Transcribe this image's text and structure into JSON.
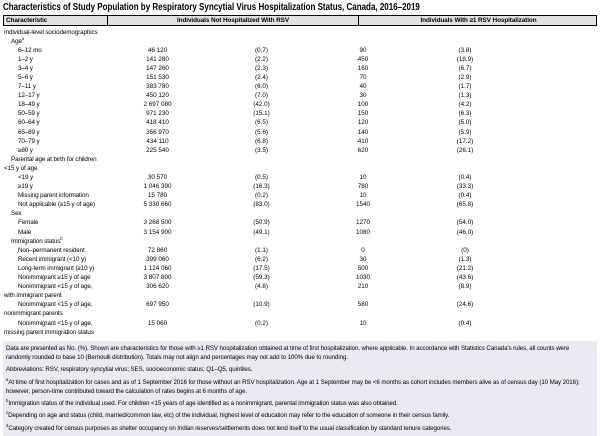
{
  "title": "Characteristics of Study Population by Respiratory Syncytial Virus Hospitalization Status, Canada, 2016–2019",
  "colors": {
    "header_bg": "#e2e2e2",
    "footnote_bg": "#eaebf2"
  },
  "table": {
    "columns": [
      "Characteristic",
      "Individuals Not Hospitalized With RSV",
      "Individuals With ≥1 RSV Hospitalization"
    ],
    "rows": [
      {
        "label": "Individual-level sociodemographics",
        "indent": 0
      },
      {
        "label": "Age",
        "sup": "a",
        "indent": 1
      },
      {
        "label": "6–12 mo",
        "indent": 2,
        "n1": "46 120",
        "p1": "(0.7)",
        "n2": "90",
        "p2": "(3.8)"
      },
      {
        "label": "1–2 y",
        "indent": 2,
        "n1": "141 280",
        "p1": "(2.2)",
        "n2": "450",
        "p2": "(18.9)"
      },
      {
        "label": "3–4 y",
        "indent": 2,
        "n1": "147 260",
        "p1": "(2.3)",
        "n2": "160",
        "p2": "(6.7)"
      },
      {
        "label": "5–6 y",
        "indent": 2,
        "n1": "151 530",
        "p1": "(2.4)",
        "n2": "70",
        "p2": "(2.9)"
      },
      {
        "label": "7–11 y",
        "indent": 2,
        "n1": "383 780",
        "p1": "(6.0)",
        "n2": "40",
        "p2": "(1.7)"
      },
      {
        "label": "12–17 y",
        "indent": 2,
        "n1": "450 120",
        "p1": "(7.0)",
        "n2": "30",
        "p2": "(1.3)"
      },
      {
        "label": "18–49 y",
        "indent": 2,
        "n1": "2 697 080",
        "p1": "(42.0)",
        "n2": "100",
        "p2": "(4.2)"
      },
      {
        "label": "50–59 y",
        "indent": 2,
        "n1": "971 230",
        "p1": "(15.1)",
        "n2": "150",
        "p2": "(6.3)"
      },
      {
        "label": "60–64 y",
        "indent": 2,
        "n1": "418 410",
        "p1": "(6.5)",
        "n2": "120",
        "p2": "(5.0)"
      },
      {
        "label": "65–69 y",
        "indent": 2,
        "n1": "356 970",
        "p1": "(5.6)",
        "n2": "140",
        "p2": "(5.9)"
      },
      {
        "label": "70–79 y",
        "indent": 2,
        "n1": "434 110",
        "p1": "(6.8)",
        "n2": "410",
        "p2": "(17.2)"
      },
      {
        "label": "≥80 y",
        "indent": 2,
        "n1": "225 540",
        "p1": "(3.5)",
        "n2": "620",
        "p2": "(26.1)"
      },
      {
        "label": "Parental age at birth for children",
        "label2": "<15 y of age",
        "indent": 1
      },
      {
        "label": "<19 y",
        "indent": 2,
        "n1": "30 570",
        "p1": "(0.5)",
        "n2": "10",
        "p2": "(0.4)"
      },
      {
        "label": "≥19 y",
        "indent": 2,
        "n1": "1 046 390",
        "p1": "(16.3)",
        "n2": "780",
        "p2": "(33.3)"
      },
      {
        "label": "Missing parent information",
        "indent": 2,
        "n1": "15 780",
        "p1": "(0.2)",
        "n2": "10",
        "p2": "(0.4)"
      },
      {
        "label": "Not applicable (≥15 y of age)",
        "indent": 2,
        "n1": "5 330 660",
        "p1": "(83.0)",
        "n2": "1540",
        "p2": "(65.8)"
      },
      {
        "label": "Sex",
        "indent": 1
      },
      {
        "label": "Female",
        "indent": 2,
        "n1": "3 268 500",
        "p1": "(50.9)",
        "n2": "1270",
        "p2": "(54.0)"
      },
      {
        "label": "Male",
        "indent": 2,
        "n1": "3 154 900",
        "p1": "(49.1)",
        "n2": "1080",
        "p2": "(46.0)"
      },
      {
        "label": "Immigration status",
        "sup": "b",
        "indent": 1
      },
      {
        "label": "Non–permanent resident",
        "indent": 2,
        "n1": "72 860",
        "p1": "(1.1)",
        "n2": "0",
        "p2": "(0)"
      },
      {
        "label": "Recent immigrant (<10 y)",
        "indent": 2,
        "n1": "399 060",
        "p1": "(6.2)",
        "n2": "30",
        "p2": "(1.3)"
      },
      {
        "label": "Long-term immigrant (≥10 y)",
        "indent": 2,
        "n1": "1 124 060",
        "p1": "(17.5)",
        "n2": "500",
        "p2": "(21.2)"
      },
      {
        "label": "Nonimmigrant ≥15 y of age",
        "indent": 2,
        "n1": "3 807 800",
        "p1": "(59.3)",
        "n2": "1030",
        "p2": "(43.6)"
      },
      {
        "label": "Nonimmigrant <15 y of age,",
        "label2": "with immigrant parent",
        "indent": 2,
        "n1": "306 620",
        "p1": "(4.8)",
        "n2": "210",
        "p2": "(8.9)"
      },
      {
        "label": "Nonimmigrant <15 y of age,",
        "label2": "nonimmigrant parents",
        "indent": 2,
        "n1": "697 950",
        "p1": "(10.9)",
        "n2": "580",
        "p2": "(24.6)"
      },
      {
        "label": "Nonimmigrant <15 y of age,",
        "label2": "missing parent immigration status",
        "indent": 2,
        "n1": "15 060",
        "p1": "(0.2)",
        "n2": "10",
        "p2": "(0.4)"
      }
    ]
  },
  "footnotes": [
    {
      "text": "Data are presented as No. (%). Shown are characteristics for those with ≥1 RSV hospitalization obtained at time of first hospitalization, where applicable. In accordance with Statistics Canada's rules, all counts were randomly rounded to base 10 (Bernoulli distribution). Totals may not align and percentages may not add to 100% due to rounding."
    },
    {
      "text": "Abbreviations: RSV, respiratory syncytial virus; SES, socioeconomic status; Q1–Q5, quintiles."
    },
    {
      "sup": "a",
      "text": "At time of first hospitalization for cases and as of 1 September 2016 for those without an RSV hospitalization. Age at 1 September may be <6 months as cohort includes members alive as of census day (10 May 2016); however, person-time contributed toward the calculation of rates begins at 6 months of age."
    },
    {
      "sup": "b",
      "text": "Immigration status of the individual used. For children <15 years of age identified as a nonimmigrant, parental immigration status was also obtained."
    },
    {
      "sup": "c",
      "text": "Depending on age and status (child, married/common law, etc) of the individual, highest level of education may refer to the education of someone in their census family."
    },
    {
      "sup": "d",
      "text": "Category created for census purposes as shelter occupancy on Indian reserves/settlements does not lend itself to the usual classification by standard tenure categories."
    }
  ]
}
